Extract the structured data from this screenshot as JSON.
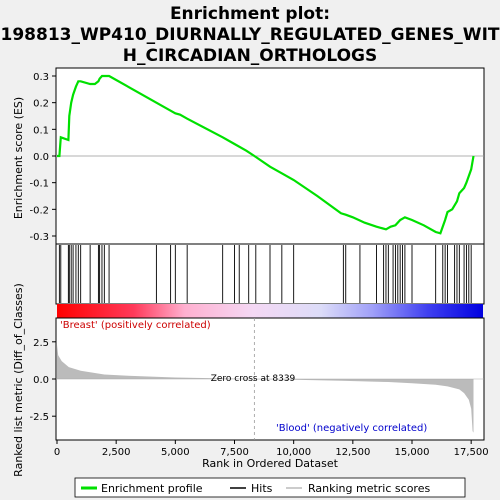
{
  "title_line1": "Enrichment plot:",
  "title_line2": "198813_WP410_DIURNALLY_REGULATED_GENES_WIT",
  "title_line3": "H_CIRCADIAN_ORTHOLOGS",
  "colors": {
    "enrichment_line": "#00e000",
    "hits": "#000000",
    "metric_fill": "#bbbbbb",
    "positive_label": "#cc0000",
    "negative_label": "#0000cc",
    "heat_positive": "#ff0000",
    "heat_negative": "#0000ff"
  },
  "chart_data": {
    "type": "line",
    "xlabel": "Rank in Ordered Dataset",
    "xlim": [
      0,
      18000
    ],
    "x_ticks": [
      0,
      2500,
      5000,
      7500,
      10000,
      12500,
      15000,
      17500
    ],
    "x_tick_labels": [
      "0",
      "2,500",
      "5,000",
      "7,500",
      "10,000",
      "12,500",
      "15,000",
      "17,500"
    ],
    "top_panel": {
      "ylabel": "Enrichment score (ES)",
      "ylim": [
        -0.33,
        0.33
      ],
      "y_ticks": [
        -0.3,
        -0.2,
        -0.1,
        0.0,
        0.1,
        0.2,
        0.3
      ],
      "y_tick_labels": [
        "-0.3",
        "-0.2",
        "-0.1",
        "0.0",
        "0.1",
        "0.2",
        "0.3"
      ],
      "series": [
        {
          "name": "Enrichment profile",
          "x": [
            0,
            100,
            160,
            480,
            520,
            600,
            680,
            800,
            900,
            1000,
            1400,
            1600,
            1750,
            1800,
            1900,
            2000,
            2200,
            4200,
            4800,
            5000,
            5200,
            5500,
            7000,
            7500,
            8000,
            8339,
            9000,
            9500,
            10000,
            11000,
            12000,
            12200,
            12500,
            13000,
            13500,
            13900,
            14100,
            14300,
            14500,
            14700,
            15000,
            15500,
            16000,
            16200,
            16400,
            16500,
            16700,
            16900,
            17000,
            17200,
            17300,
            17500,
            17600
          ],
          "y": [
            0.0,
            0.0,
            0.07,
            0.06,
            0.15,
            0.2,
            0.23,
            0.26,
            0.28,
            0.28,
            0.27,
            0.27,
            0.28,
            0.29,
            0.3,
            0.3,
            0.3,
            0.2,
            0.17,
            0.16,
            0.155,
            0.14,
            0.07,
            0.045,
            0.02,
            0.0,
            -0.04,
            -0.065,
            -0.09,
            -0.15,
            -0.215,
            -0.22,
            -0.23,
            -0.25,
            -0.265,
            -0.275,
            -0.265,
            -0.26,
            -0.24,
            -0.23,
            -0.24,
            -0.26,
            -0.285,
            -0.29,
            -0.24,
            -0.21,
            -0.2,
            -0.17,
            -0.14,
            -0.12,
            -0.1,
            -0.05,
            0.0
          ]
        }
      ]
    },
    "hits_x": [
      100,
      160,
      480,
      520,
      600,
      680,
      800,
      900,
      1000,
      1400,
      1750,
      1800,
      1900,
      2000,
      2200,
      4200,
      4800,
      5000,
      5500,
      7000,
      7500,
      7700,
      8100,
      8400,
      9000,
      9500,
      10000,
      12100,
      12200,
      12800,
      13500,
      13800,
      13900,
      14000,
      14200,
      14300,
      14400,
      14500,
      14600,
      14700,
      15000,
      16000,
      16300,
      16400,
      16500,
      16800,
      16900,
      17000,
      17200,
      17300,
      17400,
      17500
    ],
    "bottom_panel": {
      "ylabel": "Ranked list metric (Diff_of_Classes)",
      "ylim": [
        -4.1,
        4.1
      ],
      "y_ticks": [
        -2.5,
        0.0,
        2.5
      ],
      "y_tick_labels": [
        "-2.5",
        "0.0",
        "2.5"
      ],
      "metric_x": [
        0,
        50,
        200,
        500,
        1000,
        2000,
        3000,
        5000,
        7000,
        8339,
        10000,
        12000,
        14000,
        15000,
        16000,
        16500,
        17000,
        17200,
        17400,
        17500,
        17560,
        17600
      ],
      "metric_y": [
        2.3,
        1.6,
        1.2,
        0.8,
        0.55,
        0.3,
        0.22,
        0.1,
        0.04,
        0.0,
        -0.05,
        -0.12,
        -0.2,
        -0.28,
        -0.38,
        -0.5,
        -0.7,
        -0.95,
        -1.4,
        -2.0,
        -3.5,
        -3.6
      ],
      "zero_cross_label": "Zero cross at 8339",
      "zero_cross_x": 8339,
      "positive_label": "'Breast' (positively correlated)",
      "negative_label": "'Blood' (negatively correlated)"
    },
    "legend": {
      "placement": "bottom",
      "entries": [
        "Enrichment profile",
        "Hits",
        "Ranking metric scores"
      ]
    }
  }
}
